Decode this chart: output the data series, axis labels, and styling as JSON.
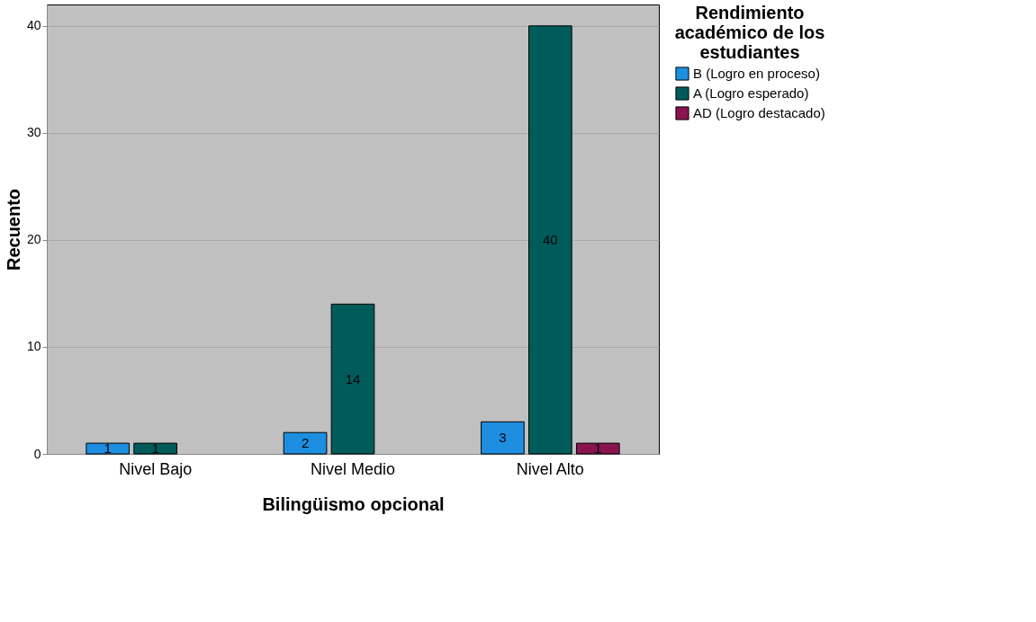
{
  "chart_data": {
    "type": "bar",
    "xlabel": "Bilingüismo opcional",
    "ylabel": "Recuento",
    "legend_title": "Rendimiento académico de los estudiantes",
    "categories": [
      "Nivel Bajo",
      "Nivel Medio",
      "Nivel Alto"
    ],
    "series": [
      {
        "name": "B (Logro en proceso)",
        "color": "#1e8ee0",
        "values": [
          1,
          2,
          3
        ]
      },
      {
        "name": "A (Logro esperado)",
        "color": "#005c5a",
        "values": [
          1,
          14,
          40
        ]
      },
      {
        "name": "AD (Logro destacado)",
        "color": "#8a1450",
        "values": [
          null,
          null,
          1
        ]
      }
    ],
    "ylim": [
      0,
      42
    ],
    "yticks": [
      0,
      10,
      20,
      30,
      40
    ],
    "grid": "y",
    "legend": "top right",
    "data_labels": true
  }
}
